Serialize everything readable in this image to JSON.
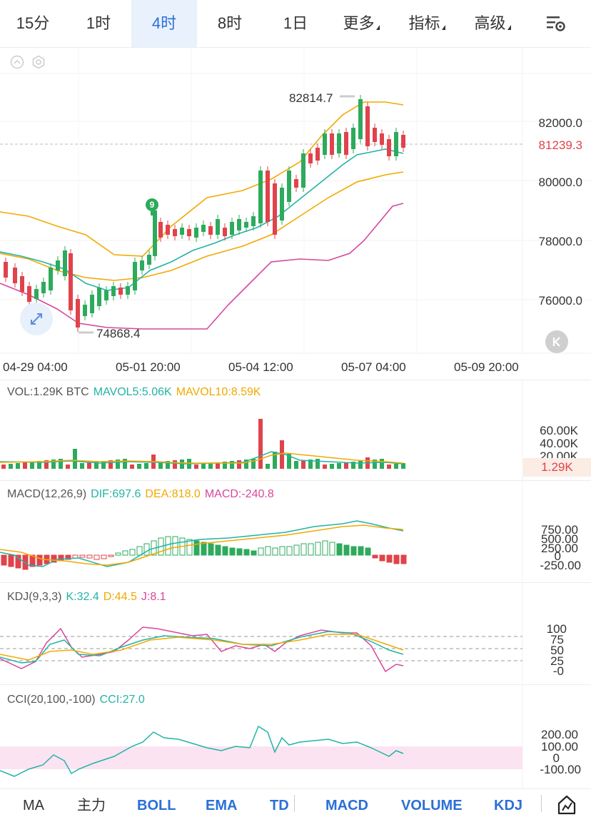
{
  "tabs": [
    {
      "label": "15分",
      "active": false
    },
    {
      "label": "1时",
      "active": false
    },
    {
      "label": "4时",
      "active": true
    },
    {
      "label": "8时",
      "active": false
    },
    {
      "label": "1日",
      "active": false
    },
    {
      "label": "更多",
      "active": false,
      "dropdown": true
    },
    {
      "label": "指标",
      "active": false,
      "dropdown": true
    },
    {
      "label": "高级",
      "active": false,
      "dropdown": true
    }
  ],
  "settings_icon": "chart-settings-icon",
  "main_chart": {
    "price_axis": [
      "82000.0",
      "80000.0",
      "78000.0",
      "76000.0"
    ],
    "current_price": "81239.3",
    "high_label": "82814.7",
    "low_label": "74868.4",
    "signal_badge": "9",
    "x_axis": [
      "04-29 04:00",
      "05-01 20:00",
      "05-04 12:00",
      "05-07 04:00",
      "05-09 20:00"
    ],
    "colors": {
      "up": "#2eaa5c",
      "down": "#e0434b",
      "ma_fast": "#22b3a5",
      "boll_mid": "#f2a900",
      "boll_lower": "#d7479b"
    }
  },
  "vol_panel": {
    "label": "VOL:1.29K BTC",
    "ma5": "MAVOL5:5.06K",
    "ma10": "MAVOL10:8.59K",
    "axis": [
      "60.00K",
      "40.00K",
      "20.00K"
    ],
    "current": "1.29K"
  },
  "macd_panel": {
    "label": "MACD(12,26,9)",
    "dif": "DIF:697.6",
    "dea": "DEA:818.0",
    "macd": "MACD:-240.8",
    "axis": [
      "750.00",
      "500.00",
      "250.00",
      "0",
      "-250.00"
    ]
  },
  "kdj_panel": {
    "label": "KDJ(9,3,3)",
    "k": "K:32.4",
    "d": "D:44.5",
    "j": "J:8.1",
    "axis": [
      "100",
      "75",
      "50",
      "25",
      "-0"
    ]
  },
  "cci_panel": {
    "label": "CCI(20,100,-100)",
    "cci": "CCI:27.0",
    "axis": [
      "200.00",
      "100.00",
      "0",
      "-100.00"
    ]
  },
  "bottom_tabs": [
    {
      "label": "MA",
      "style": "plain"
    },
    {
      "label": "主力",
      "style": "plain"
    },
    {
      "label": "BOLL",
      "style": "active"
    },
    {
      "label": "EMA",
      "style": "active"
    },
    {
      "label": "TD",
      "style": "active"
    },
    {
      "label": "MACD",
      "style": "active"
    },
    {
      "label": "VOLUME",
      "style": "active"
    },
    {
      "label": "KDJ",
      "style": "active"
    }
  ]
}
